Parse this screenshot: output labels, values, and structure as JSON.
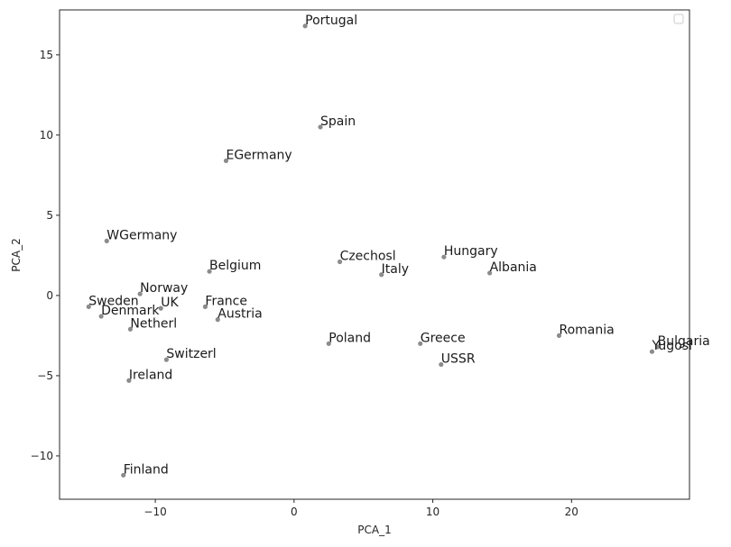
{
  "chart_data": {
    "type": "scatter",
    "title": "",
    "xlabel": "PCA_1",
    "ylabel": "PCA_2",
    "xlim": [
      -16.9,
      28.5
    ],
    "ylim": [
      -12.7,
      17.8
    ],
    "x_ticks": [
      -10,
      0,
      10,
      20
    ],
    "y_ticks": [
      -10,
      -5,
      0,
      5,
      10,
      15
    ],
    "grid": false,
    "legend": "top-right, empty",
    "marker_color": "#8c8c8c",
    "points": [
      {
        "label": "Portugal",
        "x": 0.8,
        "y": 16.8
      },
      {
        "label": "Spain",
        "x": 1.9,
        "y": 10.5
      },
      {
        "label": "EGermany",
        "x": -4.9,
        "y": 8.4
      },
      {
        "label": "WGermany",
        "x": -13.5,
        "y": 3.4
      },
      {
        "label": "Czechosl",
        "x": 3.3,
        "y": 2.1
      },
      {
        "label": "Hungary",
        "x": 10.8,
        "y": 2.4
      },
      {
        "label": "Albania",
        "x": 14.1,
        "y": 1.4
      },
      {
        "label": "Italy",
        "x": 6.3,
        "y": 1.3
      },
      {
        "label": "Belgium",
        "x": -6.1,
        "y": 1.5
      },
      {
        "label": "Norway",
        "x": -11.1,
        "y": 0.1
      },
      {
        "label": "UK",
        "x": -9.6,
        "y": -0.8
      },
      {
        "label": "Sweden",
        "x": -14.8,
        "y": -0.7
      },
      {
        "label": "France",
        "x": -6.4,
        "y": -0.7
      },
      {
        "label": "Denmark",
        "x": -13.9,
        "y": -1.3
      },
      {
        "label": "Austria",
        "x": -5.5,
        "y": -1.5
      },
      {
        "label": "Netherl",
        "x": -11.8,
        "y": -2.1
      },
      {
        "label": "Poland",
        "x": 2.5,
        "y": -3.0
      },
      {
        "label": "Greece",
        "x": 9.1,
        "y": -3.0
      },
      {
        "label": "Romania",
        "x": 19.1,
        "y": -2.5
      },
      {
        "label": "Bulgaria",
        "x": 26.2,
        "y": -3.2
      },
      {
        "label": "Yugosl",
        "x": 25.8,
        "y": -3.5
      },
      {
        "label": "USSR",
        "x": 10.6,
        "y": -4.3
      },
      {
        "label": "Switzerl",
        "x": -9.2,
        "y": -4.0
      },
      {
        "label": "Ireland",
        "x": -11.9,
        "y": -5.3
      },
      {
        "label": "Finland",
        "x": -12.3,
        "y": -11.2
      }
    ]
  }
}
